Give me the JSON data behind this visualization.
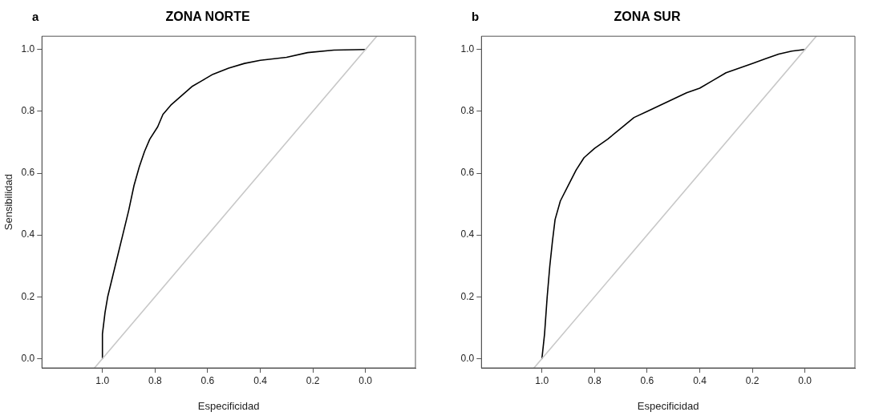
{
  "chart_data": [
    {
      "type": "line",
      "title": "ZONA NORTE",
      "annotations": [
        "a"
      ],
      "xlabel": "Especificidad",
      "ylabel": "Sensibilidad",
      "xlim": [
        1.23,
        -0.19
      ],
      "ylim": [
        -0.03,
        1.043
      ],
      "xticks": [
        {
          "value": 1,
          "label": "1.0"
        },
        {
          "value": 0.8,
          "label": "0.8"
        },
        {
          "value": 0.6,
          "label": "0.6"
        },
        {
          "value": 0.4,
          "label": "0.4"
        },
        {
          "value": 0.2,
          "label": "0.2"
        },
        {
          "value": 0,
          "label": "0.0"
        }
      ],
      "yticks": [
        {
          "value": 0,
          "label": "0.0"
        },
        {
          "value": 0.2,
          "label": "0.2"
        },
        {
          "value": 0.4,
          "label": "0.4"
        },
        {
          "value": 0.6,
          "label": "0.6"
        },
        {
          "value": 0.8,
          "label": "0.8"
        },
        {
          "value": 1,
          "label": "1.0"
        }
      ],
      "grid": false,
      "legend": false,
      "marker": "none",
      "line_style": "solid",
      "series": [
        {
          "color": "#c8c8c8",
          "x": [
            1.03,
            -0.043
          ],
          "values": [
            -0.03,
            1.043
          ]
        },
        {
          "color": "#000000",
          "x": [
            1.0,
            1.0,
            0.99,
            0.98,
            0.96,
            0.94,
            0.92,
            0.9,
            0.88,
            0.86,
            0.84,
            0.82,
            0.79,
            0.77,
            0.74,
            0.7,
            0.66,
            0.62,
            0.58,
            0.52,
            0.46,
            0.4,
            0.3,
            0.22,
            0.12,
            0.0
          ],
          "values": [
            0,
            0.08,
            0.15,
            0.2,
            0.27,
            0.34,
            0.41,
            0.48,
            0.56,
            0.62,
            0.67,
            0.71,
            0.75,
            0.79,
            0.82,
            0.85,
            0.88,
            0.9,
            0.92,
            0.94,
            0.955,
            0.965,
            0.975,
            0.99,
            0.998,
            1.0
          ]
        }
      ]
    },
    {
      "type": "line",
      "title": "ZONA SUR",
      "annotations": [
        "b"
      ],
      "xlabel": "Especificidad",
      "xlim": [
        1.23,
        -0.19
      ],
      "ylim": [
        -0.03,
        1.043
      ],
      "xticks": [
        {
          "value": 1,
          "label": "1.0"
        },
        {
          "value": 0.8,
          "label": "0.8"
        },
        {
          "value": 0.6,
          "label": "0.6"
        },
        {
          "value": 0.4,
          "label": "0.4"
        },
        {
          "value": 0.2,
          "label": "0.2"
        },
        {
          "value": 0,
          "label": "0.0"
        }
      ],
      "yticks": [
        {
          "value": 0,
          "label": "0.0"
        },
        {
          "value": 0.2,
          "label": "0.2"
        },
        {
          "value": 0.4,
          "label": "0.4"
        },
        {
          "value": 0.6,
          "label": "0.6"
        },
        {
          "value": 0.8,
          "label": "0.8"
        },
        {
          "value": 1,
          "label": "1.0"
        }
      ],
      "grid": false,
      "legend": false,
      "marker": "none",
      "line_style": "solid",
      "series": [
        {
          "color": "#c8c8c8",
          "x": [
            1.03,
            -0.043
          ],
          "values": [
            -0.03,
            1.043
          ]
        },
        {
          "color": "#000000",
          "x": [
            1.0,
            0.99,
            0.98,
            0.97,
            0.96,
            0.95,
            0.93,
            0.9,
            0.87,
            0.84,
            0.8,
            0.75,
            0.7,
            0.65,
            0.6,
            0.55,
            0.5,
            0.45,
            0.4,
            0.35,
            0.3,
            0.2,
            0.15,
            0.1,
            0.05,
            0.0
          ],
          "values": [
            0,
            0.08,
            0.2,
            0.3,
            0.38,
            0.45,
            0.51,
            0.56,
            0.61,
            0.65,
            0.68,
            0.71,
            0.745,
            0.78,
            0.8,
            0.82,
            0.84,
            0.86,
            0.875,
            0.9,
            0.925,
            0.955,
            0.97,
            0.985,
            0.995,
            1.0
          ]
        }
      ]
    }
  ]
}
